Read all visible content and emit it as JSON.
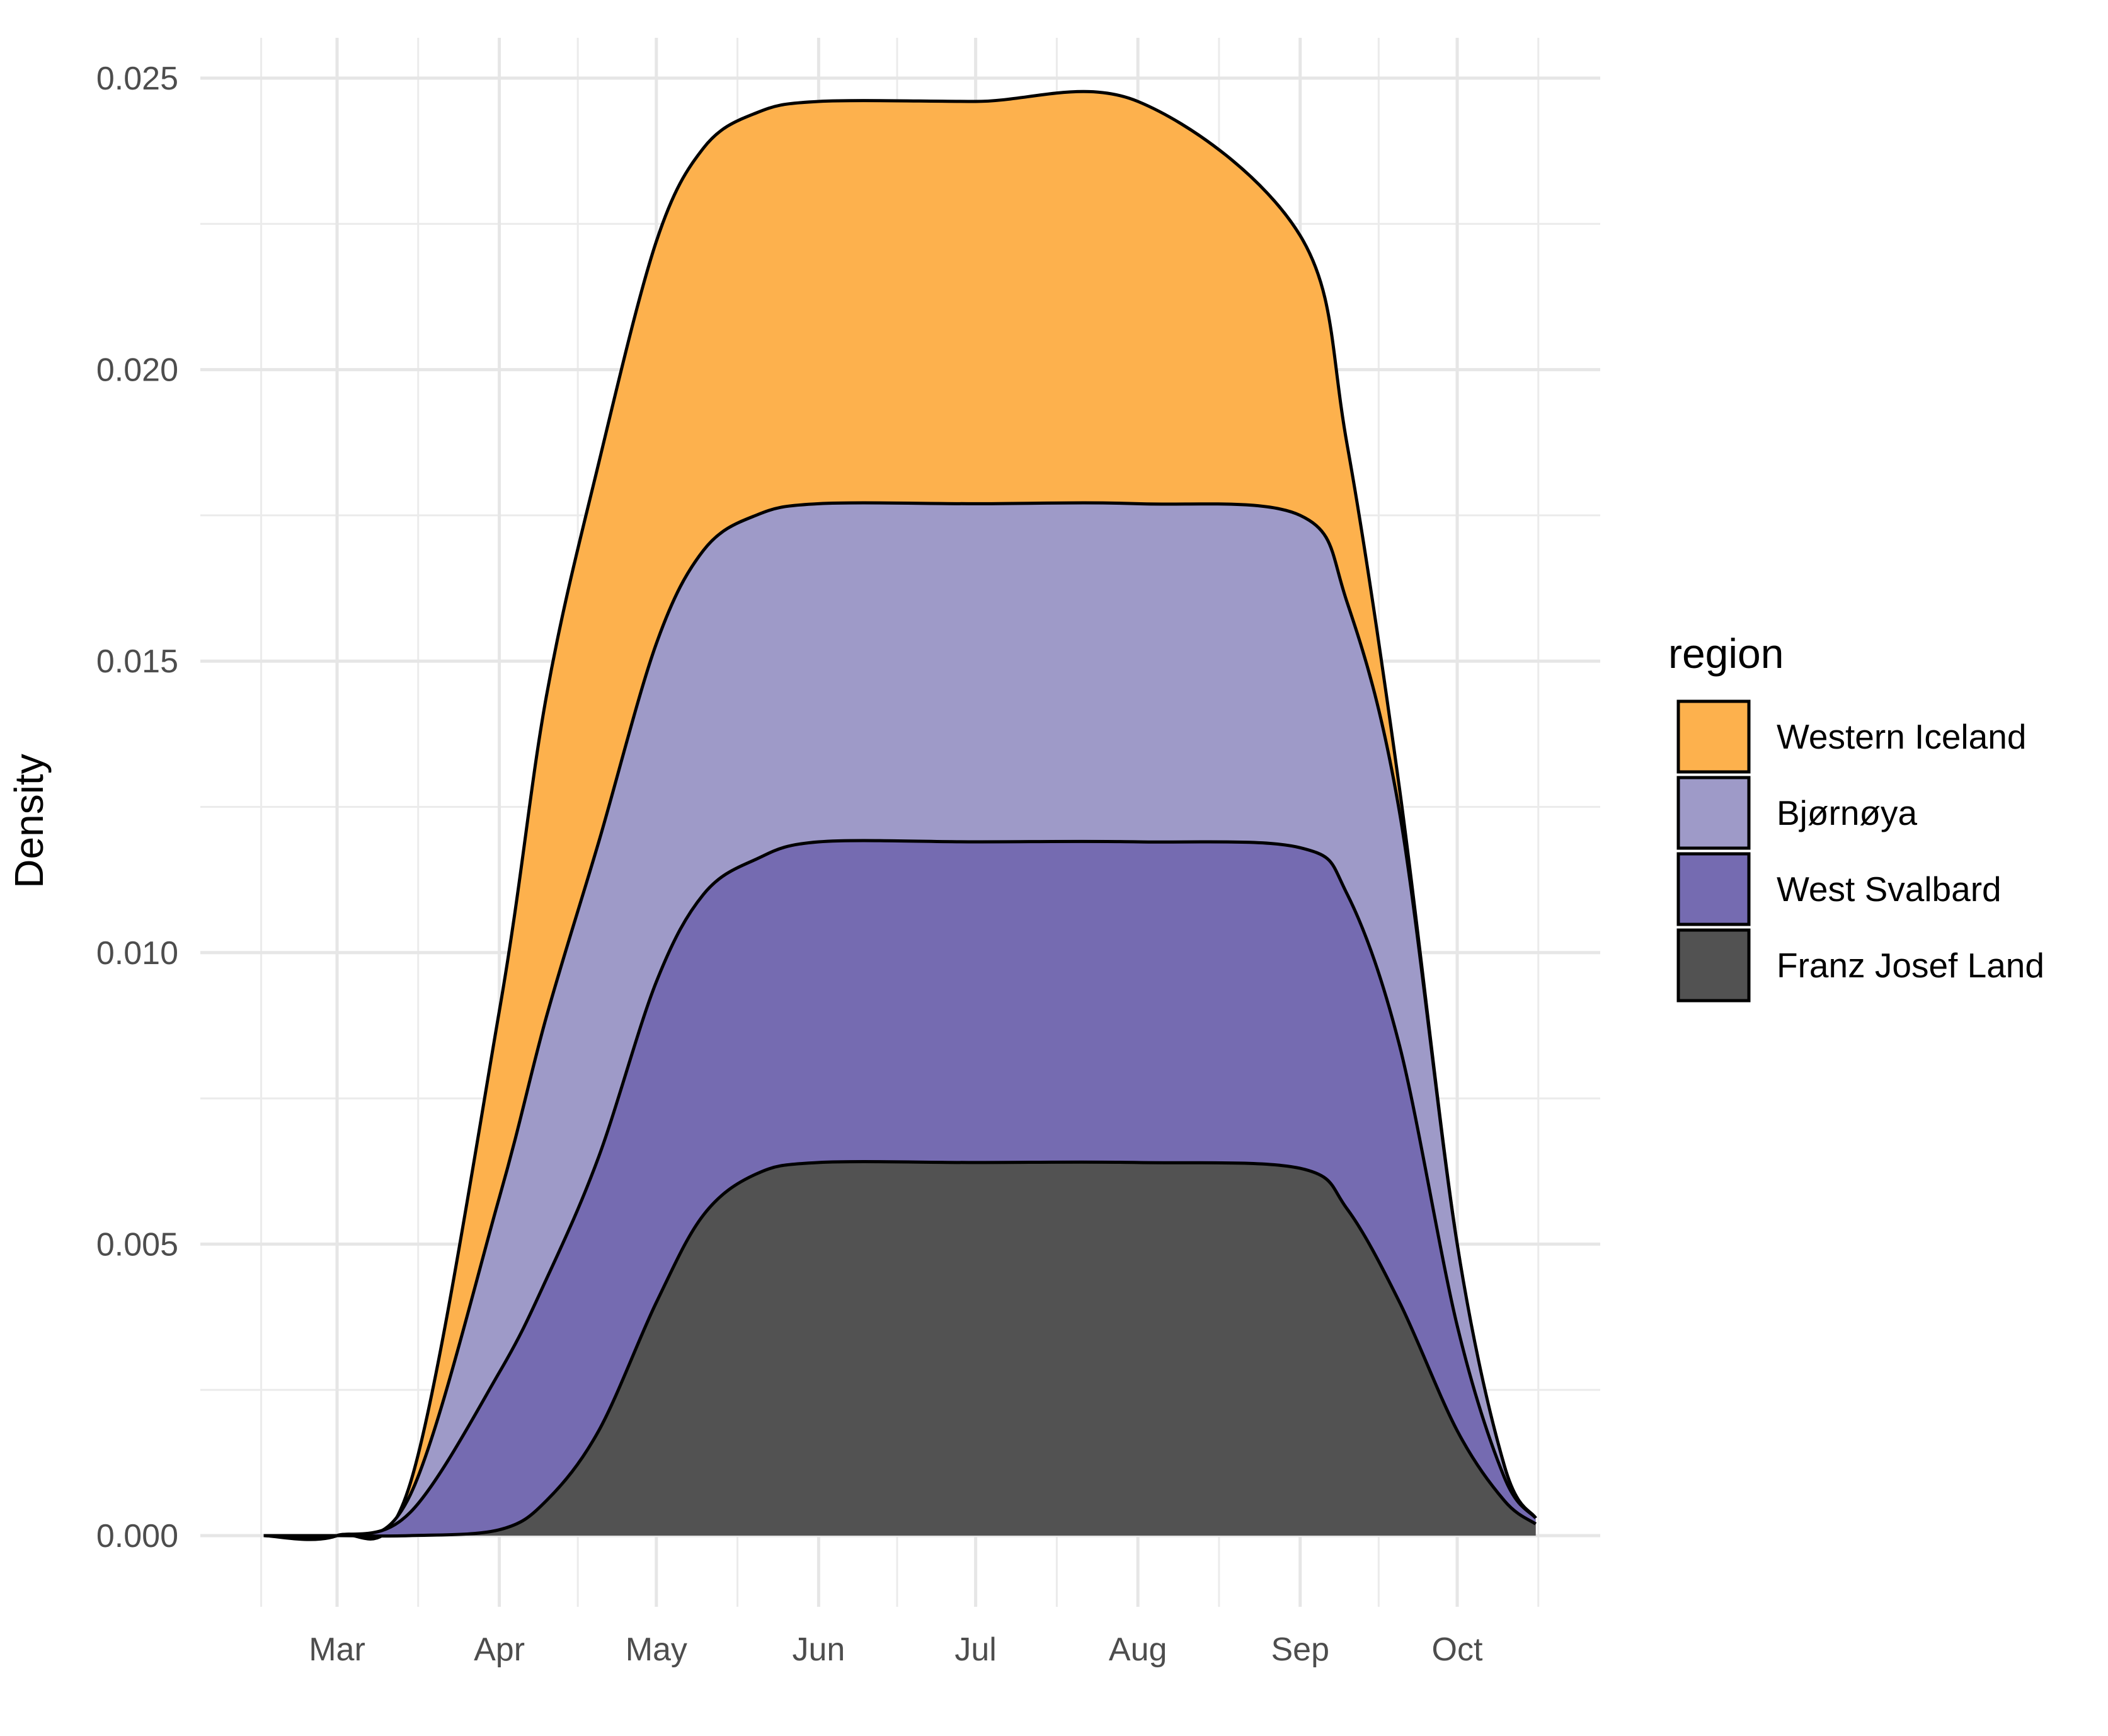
{
  "chart_data": {
    "type": "area",
    "stacked": true,
    "xlabel": "",
    "ylabel": "Density",
    "ylim": [
      0,
      0.0255
    ],
    "x_ticks": [
      "Mar",
      "Apr",
      "May",
      "Jun",
      "Jul",
      "Aug",
      "Sep",
      "Oct"
    ],
    "y_ticks": [
      "0.000",
      "0.005",
      "0.010",
      "0.015",
      "0.020",
      "0.025"
    ],
    "y_tick_values": [
      0,
      0.005,
      0.01,
      0.015,
      0.02,
      0.025
    ],
    "grid": true,
    "legend": {
      "title": "region",
      "position": "right",
      "entries": [
        "Western Iceland",
        "Bjørnøya",
        "West Svalbard",
        "Franz Josef Land"
      ]
    },
    "series": [
      {
        "name": "Franz Josef Land",
        "color": "#525252",
        "x": [
          "Feb 15",
          "Mar 1",
          "Mar 15",
          "Apr 1",
          "Apr 10",
          "Apr 20",
          "May 1",
          "May 10",
          "May 20",
          "Jun 1",
          "Jul 1",
          "Aug 1",
          "Sep 1",
          "Sep 10",
          "Sep 20",
          "Oct 1",
          "Oct 10",
          "Oct 16"
        ],
        "values": [
          0.0,
          0.0,
          0.0,
          0.0001,
          0.0006,
          0.0018,
          0.004,
          0.0055,
          0.0062,
          0.0064,
          0.0064,
          0.0064,
          0.0063,
          0.0056,
          0.004,
          0.0018,
          0.0006,
          0.0002
        ]
      },
      {
        "name": "West Svalbard",
        "color": "#756bb1",
        "x": [
          "Feb 15",
          "Mar 1",
          "Mar 15",
          "Apr 1",
          "Apr 10",
          "Apr 20",
          "May 1",
          "May 10",
          "May 20",
          "Jun 1",
          "Jul 1",
          "Aug 1",
          "Sep 1",
          "Sep 10",
          "Sep 20",
          "Oct 1",
          "Oct 10",
          "Oct 16"
        ],
        "values": [
          0.0,
          0.0,
          0.0004,
          0.0027,
          0.0038,
          0.0047,
          0.0055,
          0.0055,
          0.0054,
          0.0055,
          0.0055,
          0.0055,
          0.0055,
          0.0054,
          0.0044,
          0.0018,
          0.0004,
          0.0001
        ]
      },
      {
        "name": "Bjørnøya",
        "color": "#9e9ac8",
        "x": [
          "Feb 15",
          "Mar 1",
          "Mar 15",
          "Apr 1",
          "Apr 10",
          "Apr 20",
          "May 1",
          "May 10",
          "May 20",
          "Jun 1",
          "Jul 1",
          "Aug 1",
          "Sep 1",
          "Sep 10",
          "Sep 20",
          "Oct 1",
          "Oct 10",
          "Oct 16"
        ],
        "values": [
          0.0,
          0.0,
          0.0003,
          0.003,
          0.0045,
          0.0054,
          0.0058,
          0.0059,
          0.0059,
          0.0058,
          0.0058,
          0.0058,
          0.0057,
          0.005,
          0.004,
          0.0014,
          0.0002,
          0.0
        ]
      },
      {
        "name": "Western Iceland",
        "color": "#fdb14d",
        "x": [
          "Feb 15",
          "Mar 1",
          "Mar 15",
          "Apr 1",
          "Apr 10",
          "Apr 20",
          "May 1",
          "May 10",
          "May 20",
          "Jun 1",
          "Jul 1",
          "Aug 1",
          "Sep 1",
          "Sep 10",
          "Sep 20",
          "Oct 1",
          "Oct 10",
          "Oct 16"
        ],
        "values": [
          0.0,
          0.0,
          0.0002,
          0.0032,
          0.0055,
          0.0065,
          0.0069,
          0.0069,
          0.0069,
          0.0069,
          0.0069,
          0.0069,
          0.0048,
          0.0027,
          0.0004,
          0.0,
          0.0,
          0.0
        ]
      }
    ]
  }
}
